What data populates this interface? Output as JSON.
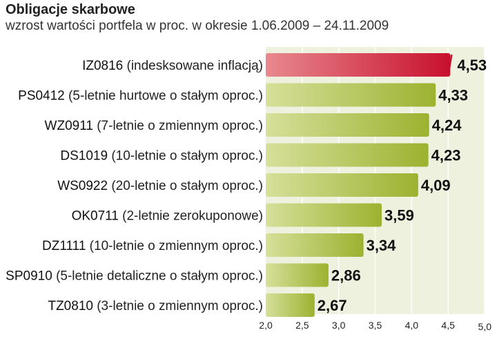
{
  "chart_data": {
    "type": "bar",
    "orientation": "horizontal",
    "title": "Obligacje skarbowe",
    "subtitle": "wzrost wartości portfela w proc. w okresie 1.06.2009 – 24.11.2009",
    "categories": [
      {
        "code": "IZ0816",
        "desc": "(indesksowane inflacją)"
      },
      {
        "code": "PS0412",
        "desc": "(5-letnie hurtowe o stałym oproc.)"
      },
      {
        "code": "WZ0911",
        "desc": "(7-letnie o zmiennym oproc.)"
      },
      {
        "code": "DS1019",
        "desc": "(10-letnie o stałym oproc.)"
      },
      {
        "code": "WS0922",
        "desc": "(20-letnie o stałym oproc.)"
      },
      {
        "code": "OK0711",
        "desc": "(2-letnie zerokuponowe)"
      },
      {
        "code": "DZ1111",
        "desc": "(10-letnie o zmiennym oproc.)"
      },
      {
        "code": "SP0910",
        "desc": "(5-letnie detaliczne o stałym oproc.)"
      },
      {
        "code": "TZ0810",
        "desc": "(3-letnie o zmiennym oproc.)"
      }
    ],
    "values": [
      4.53,
      4.33,
      4.24,
      4.23,
      4.09,
      3.59,
      3.34,
      2.86,
      2.67
    ],
    "value_labels": [
      "4,53",
      "4,33",
      "4,24",
      "4,23",
      "4,09",
      "3,59",
      "3,34",
      "2,86",
      "2,67"
    ],
    "xlim": [
      2.0,
      5.0
    ],
    "xticks": [
      2.0,
      2.5,
      3.0,
      3.5,
      4.0,
      4.5,
      5.0
    ],
    "xtick_labels": [
      "2,0",
      "2,5",
      "3,0",
      "3,5",
      "4,0",
      "4,5",
      "5,0"
    ],
    "grid": true,
    "highlight_index": 0,
    "colors": {
      "bar": "#9cb230",
      "bar_light": "#d6e09a",
      "highlight": "#c8102e",
      "highlight_light": "#e8898e",
      "highlight_text": "#c8102e",
      "plot_bg": "#eef1dd",
      "grid": "#ffffff"
    }
  }
}
